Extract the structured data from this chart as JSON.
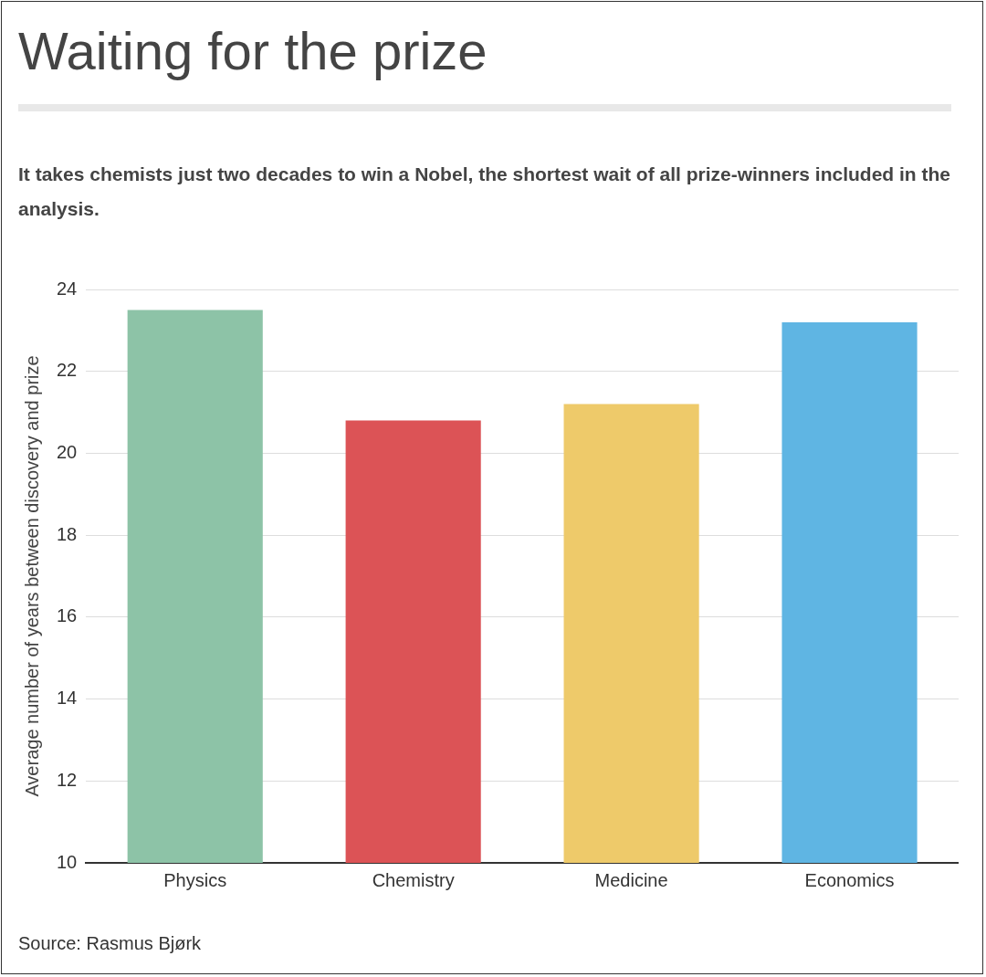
{
  "chart_data": {
    "type": "bar",
    "title": "Waiting for the prize",
    "subtitle": "It takes chemists just two decades to win a Nobel, the shortest wait of all prize-winners included in the analysis.",
    "ylabel": "Average number of years between discovery and prize",
    "categories": [
      "Physics",
      "Chemistry",
      "Medicine",
      "Economics"
    ],
    "values": [
      23.5,
      20.8,
      21.2,
      23.2
    ],
    "colors": [
      "#8dc3a7",
      "#dc5356",
      "#eeca6a",
      "#5fb5e3"
    ],
    "ylim": [
      10,
      24
    ],
    "yticks": [
      10,
      12,
      14,
      16,
      18,
      20,
      22,
      24
    ],
    "grid": "y",
    "annotations": [
      "Source: Rasmus Bjørk"
    ]
  }
}
